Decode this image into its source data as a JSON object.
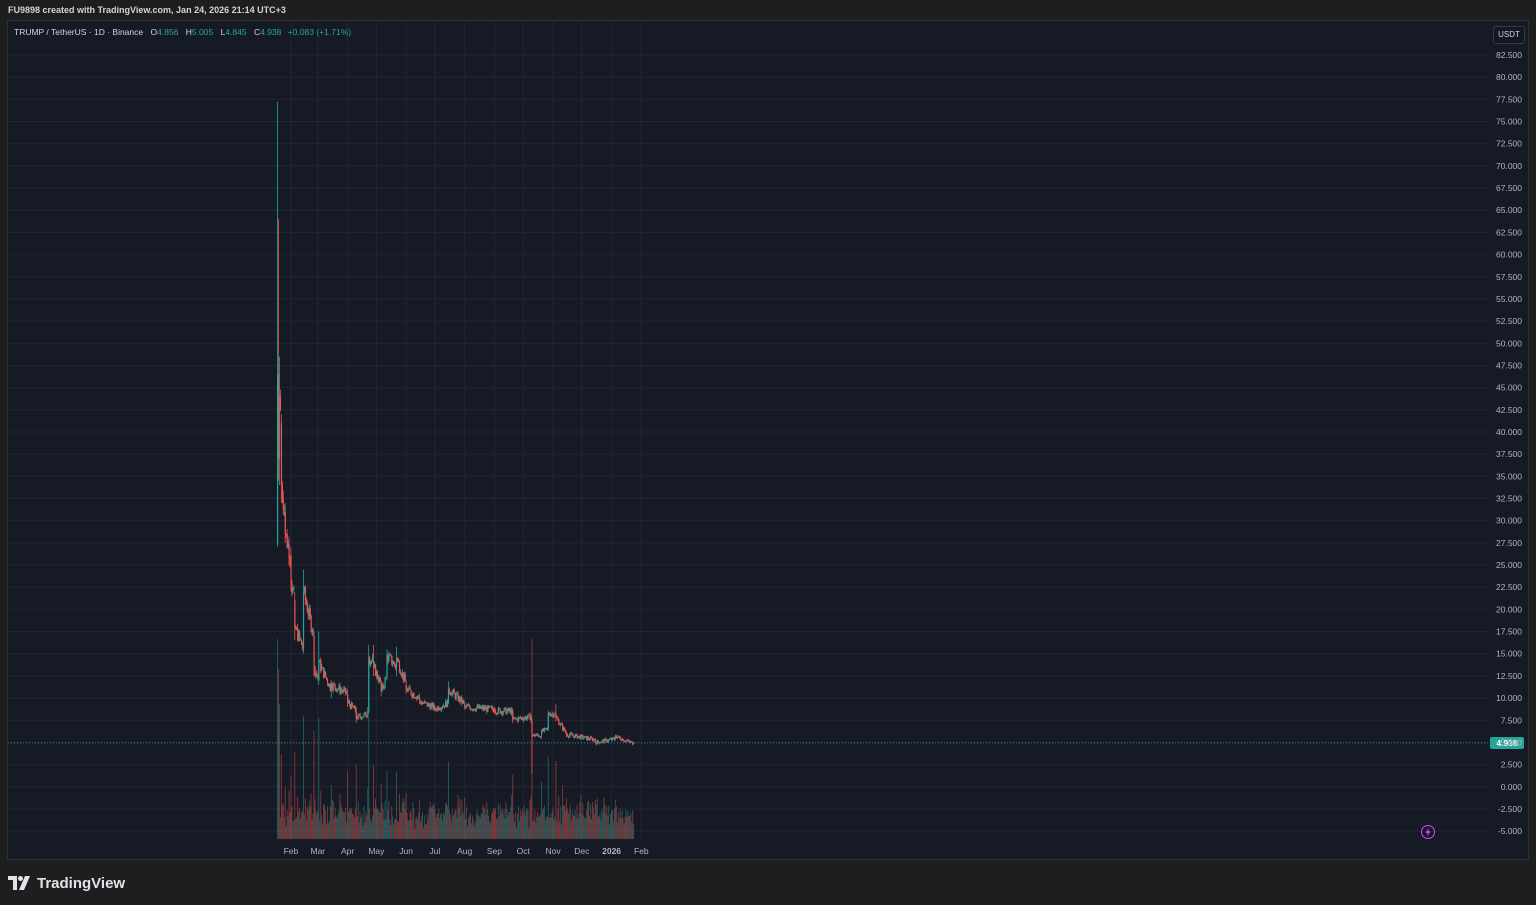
{
  "header": {
    "caption": "FU9898 created with TradingView.com, Jan 24, 2026 21:14 UTC+3"
  },
  "legend": {
    "symbol": "TRUMP / TetherUS · 1D · Binance",
    "open_key": "O",
    "open": "4.856",
    "high_key": "H",
    "high": "5.005",
    "low_key": "L",
    "low": "4.845",
    "close_key": "C",
    "close": "4.938",
    "change": "+0.083 (+1.71%)"
  },
  "currency_button": {
    "label": "USDT"
  },
  "price_axis": {
    "ticks": [
      "82.500",
      "80.000",
      "77.500",
      "75.000",
      "72.500",
      "70.000",
      "67.500",
      "65.000",
      "62.500",
      "60.000",
      "57.500",
      "55.000",
      "52.500",
      "50.000",
      "47.500",
      "45.000",
      "42.500",
      "40.000",
      "37.500",
      "35.000",
      "32.500",
      "30.000",
      "27.500",
      "25.000",
      "22.500",
      "20.000",
      "17.500",
      "15.000",
      "12.500",
      "10.000",
      "7.500",
      "5.000",
      "2.500",
      "0.000",
      "-2.500",
      "-5.000"
    ],
    "last_price_label": "4.938"
  },
  "time_axis": {
    "labels": [
      "Feb",
      "Mar",
      "Apr",
      "May",
      "Jun",
      "Jul",
      "Aug",
      "Sep",
      "Oct",
      "Nov",
      "Dec",
      "2026",
      "Feb"
    ]
  },
  "colors": {
    "up": "#26a69a",
    "down": "#ef5350",
    "background": "#161a25",
    "grid": "#232632"
  },
  "icons": {
    "alert": "lightning-bolt-icon",
    "brand": "tradingview-logo-icon"
  },
  "footer": {
    "brand": "TradingView"
  },
  "chart_data": {
    "type": "candlestick",
    "title": "TRUMP / TetherUS · 1D · Binance",
    "last_price": 4.938,
    "y_range": [
      -6.0,
      85.0
    ],
    "x_labels": [
      "Feb",
      "Mar",
      "Apr",
      "May",
      "Jun",
      "Jul",
      "Aug",
      "Sep",
      "Oct",
      "Nov",
      "Dec",
      "2026",
      "Feb"
    ],
    "grid": true,
    "keypoints": [
      {
        "date": "2025-01-18",
        "open": 27.3,
        "high": 77.2,
        "low": 27.1,
        "close": 46.5
      },
      {
        "date": "2025-01-19",
        "open": 46.5,
        "high": 64.0,
        "low": 34.5,
        "close": 37.0
      },
      {
        "date": "2025-01-20",
        "open": 37.0,
        "high": 48.5,
        "low": 34.0,
        "close": 44.0
      },
      {
        "date": "2025-01-22",
        "open": 41.0,
        "high": 42.0,
        "low": 32.0,
        "close": 34.0
      },
      {
        "date": "2025-01-26",
        "open": 31.0,
        "high": 32.0,
        "low": 27.5,
        "close": 28.5
      },
      {
        "date": "2025-02-01",
        "open": 26.0,
        "high": 27.0,
        "low": 22.0,
        "close": 23.0
      },
      {
        "date": "2025-02-05",
        "open": 21.0,
        "high": 22.0,
        "low": 16.5,
        "close": 18.0
      },
      {
        "date": "2025-02-14",
        "open": 15.5,
        "high": 24.5,
        "low": 15.0,
        "close": 22.0
      },
      {
        "date": "2025-02-25",
        "open": 17.0,
        "high": 17.5,
        "low": 12.5,
        "close": 13.5
      },
      {
        "date": "2025-03-02",
        "open": 12.0,
        "high": 17.5,
        "low": 11.5,
        "close": 14.0
      },
      {
        "date": "2025-03-15",
        "open": 11.0,
        "high": 12.0,
        "low": 10.0,
        "close": 11.5
      },
      {
        "date": "2025-04-01",
        "open": 10.5,
        "high": 11.0,
        "low": 9.0,
        "close": 9.5
      },
      {
        "date": "2025-04-10",
        "open": 8.5,
        "high": 9.0,
        "low": 7.2,
        "close": 7.8
      },
      {
        "date": "2025-04-22",
        "open": 8.2,
        "high": 9.0,
        "low": 7.8,
        "close": 8.5
      },
      {
        "date": "2025-04-23",
        "open": 8.5,
        "high": 16.0,
        "low": 8.3,
        "close": 14.5
      },
      {
        "date": "2025-04-28",
        "open": 14.0,
        "high": 16.0,
        "low": 12.5,
        "close": 13.5
      },
      {
        "date": "2025-05-06",
        "open": 11.5,
        "high": 12.0,
        "low": 10.2,
        "close": 10.8
      },
      {
        "date": "2025-05-12",
        "open": 12.5,
        "high": 15.5,
        "low": 12.0,
        "close": 14.8
      },
      {
        "date": "2025-05-22",
        "open": 13.5,
        "high": 15.8,
        "low": 12.5,
        "close": 14.5
      },
      {
        "date": "2025-06-01",
        "open": 11.5,
        "high": 12.0,
        "low": 10.5,
        "close": 11.0
      },
      {
        "date": "2025-06-15",
        "open": 10.0,
        "high": 10.5,
        "low": 9.3,
        "close": 9.6
      },
      {
        "date": "2025-07-01",
        "open": 8.9,
        "high": 9.2,
        "low": 8.5,
        "close": 8.8
      },
      {
        "date": "2025-07-15",
        "open": 9.5,
        "high": 11.9,
        "low": 9.3,
        "close": 11.0
      },
      {
        "date": "2025-08-01",
        "open": 9.3,
        "high": 9.6,
        "low": 8.7,
        "close": 9.0
      },
      {
        "date": "2025-09-01",
        "open": 8.7,
        "high": 9.0,
        "low": 8.3,
        "close": 8.6
      },
      {
        "date": "2025-09-20",
        "open": 8.5,
        "high": 8.8,
        "low": 7.2,
        "close": 7.6
      },
      {
        "date": "2025-10-09",
        "open": 7.9,
        "high": 8.1,
        "low": 7.2,
        "close": 7.5
      },
      {
        "date": "2025-10-10",
        "open": 7.5,
        "high": 7.7,
        "low": 1.5,
        "close": 5.8
      },
      {
        "date": "2025-10-20",
        "open": 5.8,
        "high": 6.5,
        "low": 5.4,
        "close": 6.2
      },
      {
        "date": "2025-10-27",
        "open": 6.5,
        "high": 8.6,
        "low": 6.3,
        "close": 8.3
      },
      {
        "date": "2025-11-04",
        "open": 8.2,
        "high": 9.3,
        "low": 7.4,
        "close": 7.8
      },
      {
        "date": "2025-11-15",
        "open": 6.0,
        "high": 6.3,
        "low": 5.6,
        "close": 5.9
      },
      {
        "date": "2025-12-15",
        "open": 5.3,
        "high": 5.5,
        "low": 4.9,
        "close": 5.0
      },
      {
        "date": "2026-01-05",
        "open": 5.4,
        "high": 5.9,
        "low": 5.2,
        "close": 5.7
      },
      {
        "date": "2026-01-24",
        "open": 4.856,
        "high": 5.005,
        "low": 4.845,
        "close": 4.938
      }
    ]
  }
}
